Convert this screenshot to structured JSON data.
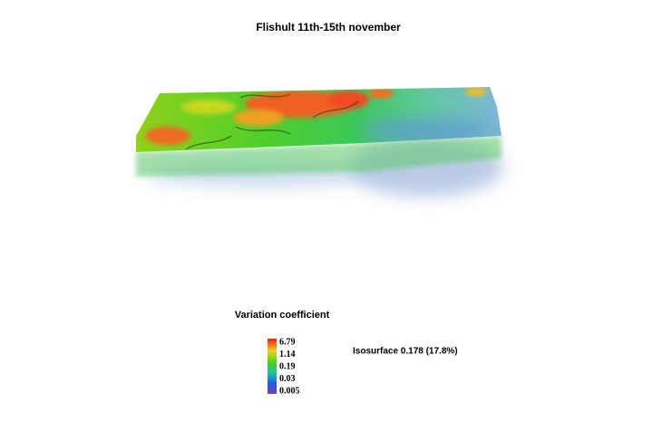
{
  "title": "Flishult 11th-15th november",
  "legend": {
    "title": "Variation coefficient",
    "ticks": [
      6.79,
      1.14,
      0.19,
      0.03,
      0.005
    ]
  },
  "annotation": "Isosurface 0.178 (17.8%)"
}
